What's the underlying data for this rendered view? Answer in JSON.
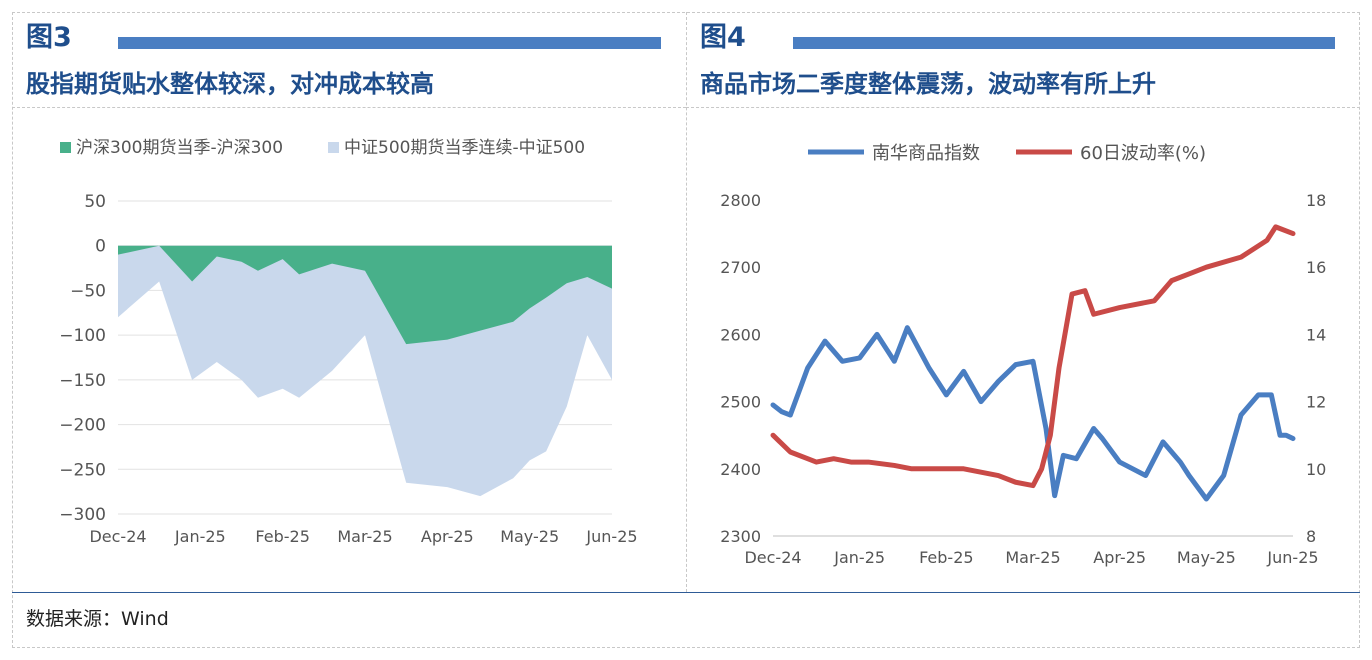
{
  "panels": [
    {
      "label": "图3",
      "title": "股指期货贴水整体较深，对冲成本较高"
    },
    {
      "label": "图4",
      "title": "商品市场二季度整体震荡，波动率有所上升"
    }
  ],
  "source": "数据来源：Wind",
  "chart_data": [
    {
      "type": "area",
      "title": "",
      "xlabel": "",
      "ylabel": "",
      "x_tick_labels": [
        "Dec-24",
        "Jan-25",
        "Feb-25",
        "Mar-25",
        "Apr-25",
        "May-25",
        "Jun-25"
      ],
      "y_tick_labels": [
        "50",
        "0",
        "−50",
        "−100",
        "−150",
        "−200",
        "−250",
        "−300"
      ],
      "ylim": [
        -300,
        50
      ],
      "grid": "horizontal",
      "legend": "top",
      "x": [
        0.0,
        0.5,
        0.9,
        1.2,
        1.5,
        1.7,
        2.0,
        2.2,
        2.6,
        3.0,
        3.5,
        4.0,
        4.4,
        4.8,
        5.0,
        5.2,
        5.45,
        5.7,
        6.0
      ],
      "series": [
        {
          "name": "沪深300期货当季-沪深300",
          "color": "#48b08a",
          "values": [
            -10,
            0,
            -40,
            -12,
            -18,
            -28,
            -15,
            -32,
            -20,
            -28,
            -110,
            -105,
            -95,
            -85,
            -70,
            -58,
            -42,
            -35,
            -48
          ]
        },
        {
          "name": "中证500期货当季连续-中证500",
          "color": "#c9d8ec",
          "values": [
            -80,
            -40,
            -150,
            -130,
            -150,
            -170,
            -160,
            -170,
            -140,
            -100,
            -265,
            -270,
            -280,
            -260,
            -240,
            -230,
            -180,
            -100,
            -150
          ]
        }
      ]
    },
    {
      "type": "line",
      "title": "",
      "xlabel": "",
      "ylabel": "",
      "x_tick_labels": [
        "Dec-24",
        "Jan-25",
        "Feb-25",
        "Mar-25",
        "Apr-25",
        "May-25",
        "Jun-25"
      ],
      "y_left_tick_labels": [
        "2800",
        "2700",
        "2600",
        "2500",
        "2400",
        "2300"
      ],
      "y_right_tick_labels": [
        "18",
        "16",
        "14",
        "12",
        "10",
        "8"
      ],
      "ylim_left": [
        2300,
        2800
      ],
      "ylim_right": [
        8,
        18
      ],
      "grid": "none",
      "legend": "top",
      "series": [
        {
          "name": "南华商品指数",
          "axis": "left",
          "color": "#4a7ec2",
          "x": [
            0.0,
            0.1,
            0.2,
            0.4,
            0.6,
            0.8,
            1.0,
            1.2,
            1.4,
            1.55,
            1.8,
            2.0,
            2.2,
            2.4,
            2.6,
            2.8,
            3.0,
            3.15,
            3.25,
            3.35,
            3.5,
            3.7,
            3.8,
            4.0,
            4.3,
            4.5,
            4.7,
            4.8,
            5.0,
            5.2,
            5.4,
            5.6,
            5.75,
            5.85,
            5.92,
            6.0
          ],
          "values": [
            2495,
            2485,
            2480,
            2550,
            2590,
            2560,
            2565,
            2600,
            2560,
            2610,
            2550,
            2510,
            2545,
            2500,
            2530,
            2555,
            2560,
            2460,
            2360,
            2420,
            2415,
            2460,
            2445,
            2410,
            2390,
            2440,
            2410,
            2390,
            2355,
            2390,
            2480,
            2510,
            2510,
            2450,
            2450,
            2445
          ]
        },
        {
          "name": "60日波动率(%)",
          "axis": "right",
          "color": "#c94a47",
          "x": [
            0.0,
            0.2,
            0.4,
            0.5,
            0.7,
            0.9,
            1.1,
            1.4,
            1.6,
            1.9,
            2.2,
            2.4,
            2.6,
            2.8,
            3.0,
            3.1,
            3.2,
            3.3,
            3.45,
            3.6,
            3.7,
            4.0,
            4.4,
            4.6,
            4.8,
            5.0,
            5.4,
            5.7,
            5.8,
            6.0
          ],
          "values": [
            11.0,
            10.5,
            10.3,
            10.2,
            10.3,
            10.2,
            10.2,
            10.1,
            10.0,
            10.0,
            10.0,
            9.9,
            9.8,
            9.6,
            9.5,
            10.0,
            11.0,
            13.0,
            15.2,
            15.3,
            14.6,
            14.8,
            15.0,
            15.6,
            15.8,
            16.0,
            16.3,
            16.8,
            17.2,
            17.0
          ]
        }
      ]
    }
  ]
}
